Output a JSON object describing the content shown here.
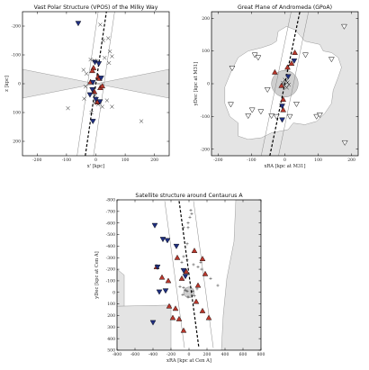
{
  "chart_data": [
    {
      "type": "scatter",
      "title": "Vast Polar Structure (VPOS) of the Milky Way",
      "xlabel": "x' [kpc]",
      "ylabel": "z [kpc]",
      "xlim": [
        -250,
        250
      ],
      "ylim": [
        -250,
        250
      ],
      "y_inverted": true,
      "xticks": [
        -200,
        -100,
        0,
        100,
        200
      ],
      "yticks": [
        -200,
        -100,
        0,
        100,
        200
      ],
      "grid": false,
      "shaded_region": "grey bow-tie (obscured zone) around z = 0",
      "plane_line": {
        "from": [
          -36,
          250
        ],
        "to": [
          36,
          -250
        ],
        "style": "dashed"
      },
      "series": [
        {
          "marker": "triangle-up",
          "color": "#b8372c",
          "points": [
            [
              -8,
              -55
            ],
            [
              -12,
              -45
            ],
            [
              8,
              -25
            ],
            [
              12,
              -18
            ],
            [
              -18,
              -6
            ],
            [
              15,
              14
            ],
            [
              22,
              8
            ],
            [
              -5,
              28
            ],
            [
              5,
              64
            ]
          ]
        },
        {
          "marker": "triangle-down",
          "color": "#1f2f80",
          "points": [
            [
              -60,
              -210
            ],
            [
              -3,
              -75
            ],
            [
              10,
              -70
            ],
            [
              18,
              -20
            ],
            [
              -10,
              -5
            ],
            [
              -12,
              20
            ],
            [
              -20,
              38
            ],
            [
              0,
              54
            ],
            [
              14,
              62
            ],
            [
              -10,
              130
            ]
          ]
        },
        {
          "marker": "x",
          "color": "#111111",
          "points": [
            [
              15,
              -205
            ],
            [
              42,
              -158
            ],
            [
              25,
              -150
            ],
            [
              48,
              -112
            ],
            [
              55,
              -95
            ],
            [
              30,
              -90
            ],
            [
              -18,
              -84
            ],
            [
              -5,
              -80
            ],
            [
              45,
              -72
            ],
            [
              -42,
              -48
            ],
            [
              -32,
              -35
            ],
            [
              -35,
              10
            ],
            [
              -8,
              30
            ],
            [
              -3,
              40
            ],
            [
              -40,
              52
            ],
            [
              38,
              58
            ],
            [
              -4,
              65
            ],
            [
              8,
              72
            ],
            [
              55,
              80
            ],
            [
              22,
              80
            ],
            [
              -95,
              85
            ],
            [
              -15,
              100
            ],
            [
              155,
              130
            ]
          ]
        }
      ]
    },
    {
      "type": "scatter",
      "title": "Great Plane of Andromeda (GPoA)",
      "xlabel": "xRA [kpc at M31]",
      "ylabel": "yDec [kpc at M31]",
      "xlim": [
        -220,
        220
      ],
      "ylim": [
        -220,
        220
      ],
      "xticks": [
        -200,
        -100,
        0,
        100,
        200
      ],
      "yticks": [
        -200,
        -100,
        0,
        100,
        200
      ],
      "grid": false,
      "shaded_region": "grey area outside the survey footprint",
      "plane_line": {
        "from": [
          -45,
          -220
        ],
        "to": [
          45,
          220
        ],
        "style": "dashed"
      },
      "series": [
        {
          "marker": "triangle-up",
          "color": "#b8372c",
          "points": [
            [
              30,
              95
            ],
            [
              20,
              62
            ],
            [
              8,
              50
            ],
            [
              -30,
              35
            ],
            [
              -10,
              -6
            ],
            [
              -5,
              -48
            ],
            [
              -5,
              -80
            ]
          ]
        },
        {
          "marker": "triangle-down",
          "color": "#1f2f80",
          "points": [
            [
              28,
              70
            ],
            [
              10,
              22
            ],
            [
              -8,
              -68
            ],
            [
              -8,
              -110
            ]
          ]
        },
        {
          "marker": "triangle-open",
          "color": "#111111",
          "points": [
            [
              -90,
              88
            ],
            [
              -80,
              80
            ],
            [
              -158,
              48
            ],
            [
              -52,
              -18
            ],
            [
              -162,
              -63
            ],
            [
              -98,
              -80
            ],
            [
              -110,
              -98
            ],
            [
              -72,
              -85
            ],
            [
              -25,
              -100
            ],
            [
              -40,
              -98
            ],
            [
              15,
              -100
            ],
            [
              95,
              -100
            ],
            [
              105,
              -95
            ],
            [
              35,
              -62
            ],
            [
              62,
              88
            ],
            [
              180,
              -180
            ],
            [
              140,
              75
            ],
            [
              178,
              175
            ]
          ]
        },
        {
          "marker": "x",
          "color": "#111111",
          "points": [
            [
              0,
              12
            ],
            [
              4,
              8
            ],
            [
              -6,
              3
            ],
            [
              12,
              -3
            ],
            [
              6,
              -12
            ],
            [
              -2,
              -5
            ],
            [
              8,
              4
            ]
          ]
        }
      ]
    },
    {
      "type": "scatter",
      "title": "Satellite structure around Centaurus A",
      "xlabel": "xRA [kpc at Cen A]",
      "ylabel": "yDec [kpc at Cen A]",
      "xlim": [
        -800,
        800
      ],
      "ylim": [
        -800,
        500
      ],
      "y_inverted": true,
      "xticks": [
        -800,
        -600,
        -400,
        -200,
        0,
        200,
        400,
        600,
        800
      ],
      "yticks": [
        -800,
        -700,
        -600,
        -500,
        -400,
        -300,
        -200,
        -100,
        0,
        100,
        200,
        300,
        400,
        500
      ],
      "grid": false,
      "shaded_region": "grey area outside the survey footprint",
      "plane_line": {
        "from": [
          -110,
          -790
        ],
        "to": [
          110,
          480
        ],
        "style": "dashed"
      },
      "series": [
        {
          "marker": "triangle-up",
          "color": "#b8372c",
          "points": [
            [
              -130,
              -300
            ],
            [
              60,
              -360
            ],
            [
              150,
              -290
            ],
            [
              -300,
              -130
            ],
            [
              -230,
              -100
            ],
            [
              -80,
              -120
            ],
            [
              100,
              -60
            ],
            [
              180,
              -160
            ],
            [
              -220,
              120
            ],
            [
              -150,
              140
            ],
            [
              80,
              80
            ],
            [
              -360,
              -220
            ],
            [
              -110,
              230
            ],
            [
              -180,
              220
            ],
            [
              150,
              160
            ],
            [
              -60,
              330
            ],
            [
              220,
              220
            ],
            [
              -30,
              -180
            ]
          ]
        },
        {
          "marker": "triangle-down",
          "color": "#1f2f80",
          "points": [
            [
              -380,
              -580
            ],
            [
              -240,
              -450
            ],
            [
              -290,
              -460
            ],
            [
              -140,
              -400
            ],
            [
              -60,
              -190
            ],
            [
              -40,
              -140
            ],
            [
              -260,
              -15
            ],
            [
              -330,
              -5
            ],
            [
              -400,
              260
            ],
            [
              -350,
              -220
            ]
          ]
        },
        {
          "marker": "plus",
          "color": "#111111",
          "points": [
            [
              20,
              -710
            ],
            [
              30,
              -680
            ],
            [
              10,
              -650
            ],
            [
              -10,
              -600
            ],
            [
              -10,
              -560
            ],
            [
              -60,
              -560
            ],
            [
              -20,
              -420
            ],
            [
              -60,
              -310
            ],
            [
              -80,
              -260
            ],
            [
              -20,
              -280
            ],
            [
              50,
              -240
            ],
            [
              100,
              -220
            ],
            [
              130,
              -260
            ],
            [
              240,
              -120
            ],
            [
              -60,
              -40
            ],
            [
              -40,
              -20
            ],
            [
              -20,
              -10
            ],
            [
              40,
              -10
            ],
            [
              60,
              30
            ],
            [
              -10,
              40
            ],
            [
              90,
              -30
            ],
            [
              -70,
              20
            ],
            [
              -100,
              -50
            ],
            [
              140,
              -200
            ],
            [
              320,
              -60
            ]
          ]
        }
      ]
    }
  ]
}
